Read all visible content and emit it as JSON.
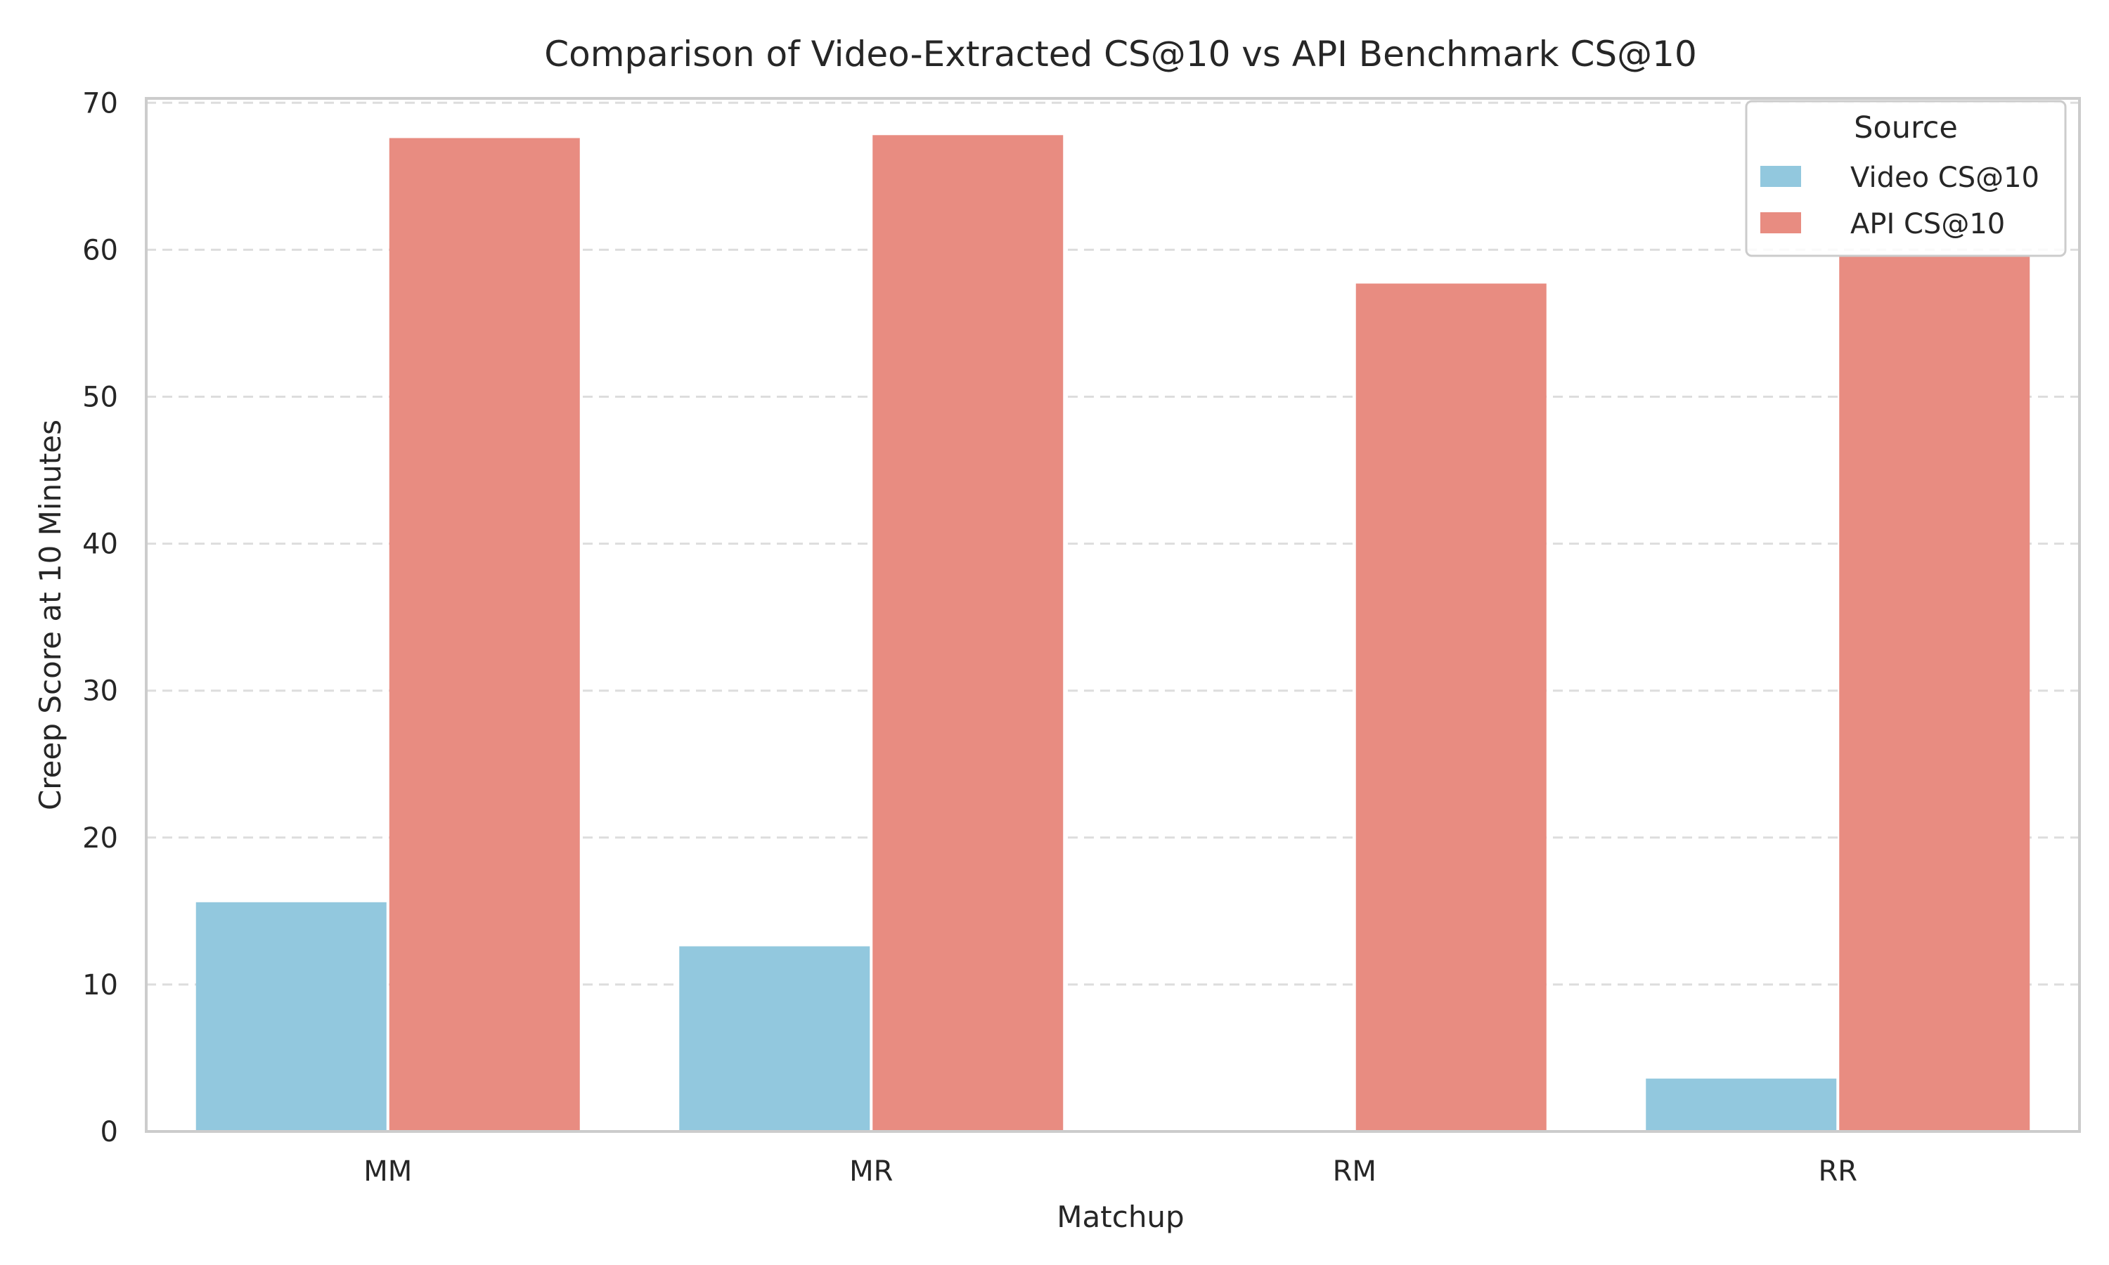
{
  "chart_data": {
    "type": "bar",
    "title": "Comparison of Video-Extracted CS@10 vs API Benchmark CS@10",
    "xlabel": "Matchup",
    "ylabel": "Creep Score at 10 Minutes",
    "categories": [
      "MM",
      "MR",
      "RM",
      "RR"
    ],
    "series": [
      {
        "name": "Video CS@10",
        "values": [
          15.6,
          12.6,
          0,
          3.6
        ],
        "color": "#92c8de"
      },
      {
        "name": "API CS@10",
        "values": [
          67.6,
          67.8,
          57.7,
          59.6
        ],
        "color": "#e88c81"
      }
    ],
    "ylim": [
      0,
      70
    ],
    "yticks": [
      0,
      10,
      20,
      30,
      40,
      50,
      60,
      70
    ],
    "grid": true,
    "legend": {
      "title": "Source",
      "position": "top-right"
    },
    "colors": {
      "grid": "#dddddd",
      "spine": "#cccccc",
      "text": "#262626"
    }
  }
}
